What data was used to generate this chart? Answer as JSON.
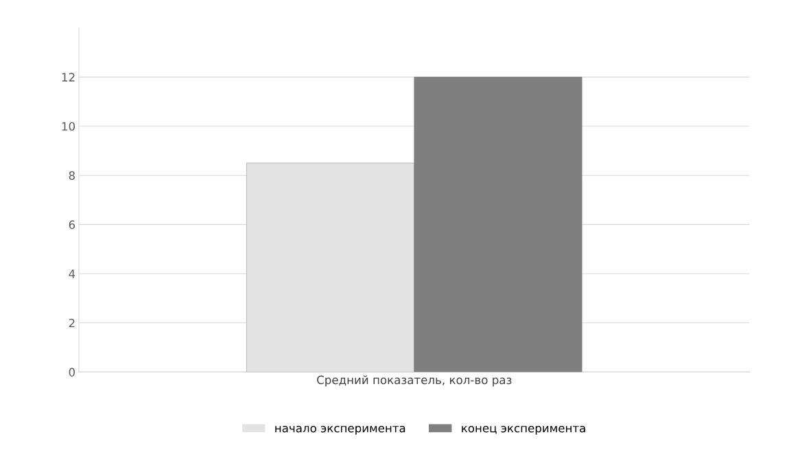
{
  "chart_data": {
    "type": "bar",
    "categories": [
      "Средний показатель, кол-во раз"
    ],
    "series": [
      {
        "name": "начало эксперимента",
        "color": "#e3e3e3",
        "values": [
          8.5
        ]
      },
      {
        "name": "конец эксперимента",
        "color": "#7f7f7f",
        "values": [
          12
        ]
      }
    ],
    "ylim": [
      0,
      14
    ],
    "yticks": [
      0,
      2,
      4,
      6,
      8,
      10,
      12
    ],
    "grid": "y",
    "legend": "bottom"
  }
}
